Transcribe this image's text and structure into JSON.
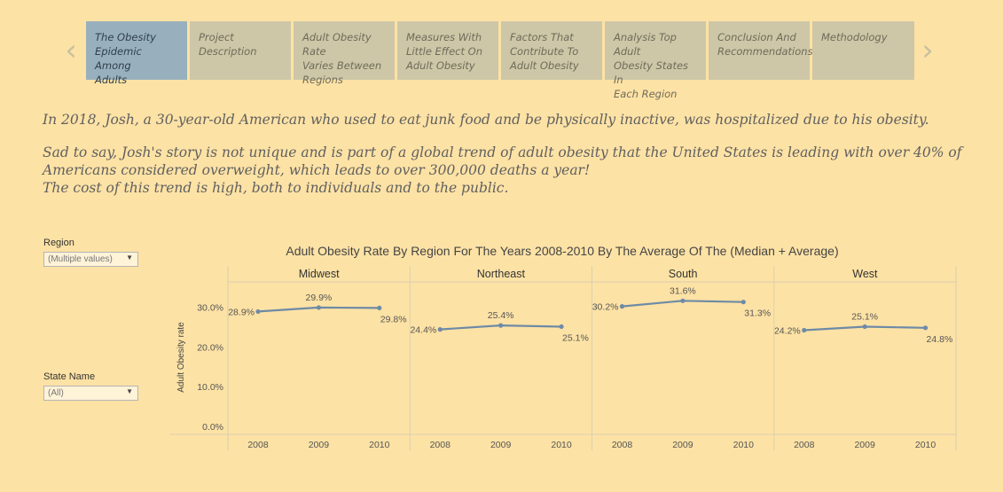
{
  "tabs": [
    {
      "label_lines": [
        "The Obesity",
        "Epidemic Among",
        "Adults"
      ],
      "active": true
    },
    {
      "label_lines": [
        "Project Description"
      ],
      "active": false
    },
    {
      "label_lines": [
        "Adult Obesity Rate",
        "Varies Between",
        "Regions"
      ],
      "active": false
    },
    {
      "label_lines": [
        "Measures With",
        "Little Effect On",
        "Adult Obesity"
      ],
      "active": false
    },
    {
      "label_lines": [
        "Factors That",
        "Contribute To",
        "Adult Obesity"
      ],
      "active": false
    },
    {
      "label_lines": [
        "Analysis Top Adult",
        "Obesity States In",
        "Each Region"
      ],
      "active": false
    },
    {
      "label_lines": [
        "Conclusion And",
        "Recommendations"
      ],
      "active": false
    },
    {
      "label_lines": [
        "Methodology"
      ],
      "active": false
    }
  ],
  "nav": {
    "prev_icon": "chevron-left-icon",
    "next_icon": "chevron-right-icon",
    "prev_glyph": "‹",
    "next_glyph": "›"
  },
  "story": {
    "line1": "In 2018, Josh, a 30-year-old American who used to eat junk food and be physically inactive, was hospitalized due to his obesity.",
    "line2": "Sad to say, Josh's story is not unique and is part of a global trend of adult obesity that the United States is leading with over 40% of",
    "line3": "Americans considered overweight, which leads to over 300,000 deaths a year!",
    "line4": "The cost of this trend is high, both to individuals and to the public."
  },
  "filters": {
    "region": {
      "label": "Region",
      "value": "(Multiple values)"
    },
    "state": {
      "label": "State Name",
      "value": "(All)"
    }
  },
  "colors": {
    "line": "#6e8aa6",
    "text": "#555555",
    "grid": "#d9cfb0"
  },
  "chart_data": {
    "type": "line",
    "title": "Adult Obesity Rate By Region For The Years 2008-2010 By The Average Of The (Median + Average)",
    "ylabel": "Adult Obesity rate",
    "ylim": [
      0,
      35
    ],
    "yticks": [
      "0.0%",
      "10.0%",
      "20.0%",
      "30.0%"
    ],
    "ytick_values": [
      0,
      10,
      20,
      30
    ],
    "categories": [
      "2008",
      "2009",
      "2010"
    ],
    "panels": [
      {
        "name": "Midwest",
        "values": [
          28.9,
          29.9,
          29.8
        ],
        "labels": [
          "28.9%",
          "29.9%",
          "29.8%"
        ]
      },
      {
        "name": "Northeast",
        "values": [
          24.4,
          25.4,
          25.1
        ],
        "labels": [
          "24.4%",
          "25.4%",
          "25.1%"
        ]
      },
      {
        "name": "South",
        "values": [
          30.2,
          31.6,
          31.3
        ],
        "labels": [
          "30.2%",
          "31.6%",
          "31.3%"
        ]
      },
      {
        "name": "West",
        "values": [
          24.2,
          25.1,
          24.8
        ],
        "labels": [
          "24.2%",
          "25.1%",
          "24.8%"
        ]
      }
    ]
  }
}
